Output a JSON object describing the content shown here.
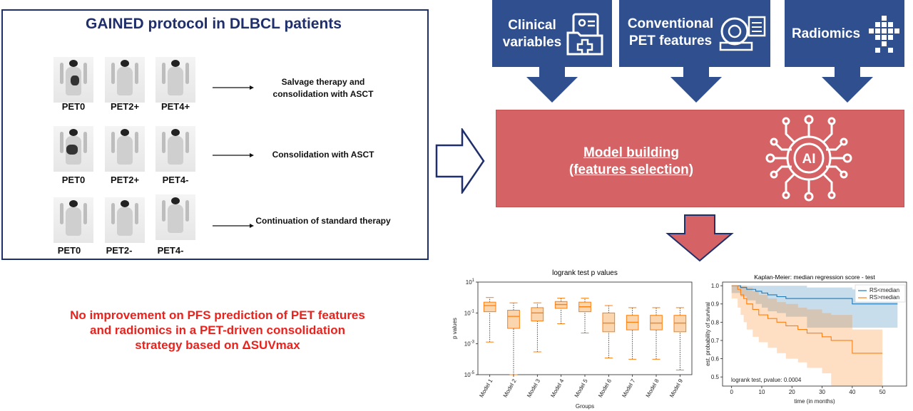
{
  "protocol": {
    "title": "GAINED protocol in DLBCL patients",
    "rows": [
      {
        "labels": [
          "PET0",
          "PET2+",
          "PET4+"
        ],
        "outcome": "Salvage therapy and consolidation with ASCT"
      },
      {
        "labels": [
          "PET0",
          "PET2+",
          "PET4-"
        ],
        "outcome": "Consolidation with ASCT"
      },
      {
        "labels": [
          "PET0",
          "PET2-",
          "PET4-"
        ],
        "outcome": "Continuation of standard therapy"
      }
    ]
  },
  "inputs": [
    {
      "label_line1": "Clinical",
      "label_line2": "variables",
      "icon": "clinical-folder-icon"
    },
    {
      "label_line1": "Conventional",
      "label_line2": "PET features",
      "icon": "pet-scanner-icon"
    },
    {
      "label_line1": "Radiomics",
      "label_line2": "",
      "icon": "radiomics-grid-icon"
    }
  ],
  "model": {
    "line1": "Model building",
    "line2": "(features selection)",
    "icon": "ai-chip-icon",
    "icon_text": "AI"
  },
  "conclusion": "No improvement on PFS prediction of PET features and radiomics in a PET-driven consolidation strategy based on ΔSUVmax",
  "colors": {
    "navy": "#1f2f6b",
    "feature_blue": "#2f4f8f",
    "model_red": "#d56264",
    "conclusion_red": "#e8231e",
    "box_orange": "#f6b26b",
    "km_blue": "#1f77b4",
    "km_orange": "#ff7f0e"
  },
  "chart_data": [
    {
      "type": "box",
      "title": "logrank test p values",
      "xlabel": "Groups",
      "ylabel": "p values",
      "yscale": "log",
      "ylim": [
        1e-05,
        10
      ],
      "yticks": [
        "10^1",
        "10^-1",
        "10^-3",
        "10^-5"
      ],
      "categories": [
        "Model 1",
        "Model 2",
        "Model 3",
        "Model 4",
        "Model 5",
        "Model 6",
        "Model 7",
        "Model 8",
        "Model 9"
      ],
      "boxes": [
        {
          "min": 0.0013,
          "q1": 0.12,
          "median": 0.3,
          "q3": 0.5,
          "max": 1.0
        },
        {
          "min": 1e-05,
          "q1": 0.01,
          "median": 0.06,
          "q3": 0.15,
          "max": 0.45
        },
        {
          "min": 0.0003,
          "q1": 0.03,
          "median": 0.1,
          "q3": 0.22,
          "max": 0.45
        },
        {
          "min": 0.02,
          "q1": 0.2,
          "median": 0.35,
          "q3": 0.55,
          "max": 0.9
        },
        {
          "min": 0.005,
          "q1": 0.12,
          "median": 0.25,
          "q3": 0.5,
          "max": 0.9
        },
        {
          "min": 0.00012,
          "q1": 0.006,
          "median": 0.022,
          "q3": 0.1,
          "max": 0.3
        },
        {
          "min": 0.0001,
          "q1": 0.008,
          "median": 0.025,
          "q3": 0.07,
          "max": 0.22
        },
        {
          "min": 0.0001,
          "q1": 0.008,
          "median": 0.022,
          "q3": 0.07,
          "max": 0.22
        },
        {
          "min": 2e-05,
          "q1": 0.006,
          "median": 0.022,
          "q3": 0.07,
          "max": 0.22
        }
      ]
    },
    {
      "type": "line",
      "title": "Kaplan-Meier: median regression score - test",
      "xlabel": "time (in months)",
      "ylabel": "est. probability of survival",
      "xlim": [
        -3,
        58
      ],
      "ylim": [
        0.45,
        1.02
      ],
      "xticks": [
        0,
        10,
        20,
        30,
        40,
        50
      ],
      "yticks": [
        0.5,
        0.6,
        0.7,
        0.8,
        0.9,
        1.0
      ],
      "annotation": "logrank test, pvalue: 0.0004",
      "series": [
        {
          "name": "RS<median",
          "x": [
            0,
            3,
            5,
            8,
            10,
            12,
            15,
            18,
            25,
            40,
            55
          ],
          "y": [
            1.0,
            0.99,
            0.98,
            0.97,
            0.96,
            0.95,
            0.94,
            0.93,
            0.93,
            0.9,
            0.9
          ],
          "ci_low": [
            1.0,
            0.96,
            0.94,
            0.92,
            0.9,
            0.88,
            0.86,
            0.85,
            0.83,
            0.77,
            0.77
          ],
          "ci_high": [
            1.0,
            1.0,
            1.0,
            1.0,
            1.0,
            1.0,
            1.0,
            1.0,
            0.99,
            0.98,
            0.98
          ]
        },
        {
          "name": "RS>median",
          "x": [
            0,
            2,
            3,
            4,
            5,
            7,
            9,
            12,
            15,
            18,
            22,
            25,
            30,
            33,
            40,
            50
          ],
          "y": [
            1.0,
            0.98,
            0.95,
            0.93,
            0.9,
            0.87,
            0.84,
            0.82,
            0.8,
            0.78,
            0.76,
            0.74,
            0.72,
            0.7,
            0.63,
            0.63
          ],
          "ci_low": [
            1.0,
            0.93,
            0.88,
            0.84,
            0.8,
            0.76,
            0.72,
            0.69,
            0.66,
            0.63,
            0.6,
            0.58,
            0.55,
            0.52,
            0.45,
            0.45
          ],
          "ci_high": [
            1.0,
            1.0,
            1.0,
            1.0,
            0.99,
            0.97,
            0.95,
            0.93,
            0.91,
            0.9,
            0.88,
            0.87,
            0.85,
            0.84,
            0.76,
            0.76
          ]
        }
      ]
    }
  ]
}
